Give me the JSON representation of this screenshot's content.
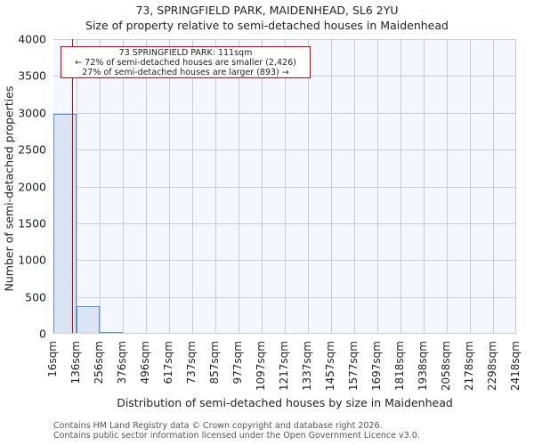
{
  "header": {
    "title": "73, SPRINGFIELD PARK, MAIDENHEAD, SL6 2YU",
    "subtitle": "Size of property relative to semi-detached houses in Maidenhead"
  },
  "annotation": {
    "line1": "73 SPRINGFIELD PARK: 111sqm",
    "line2": "← 72% of semi-detached houses are smaller (2,426)",
    "line3": "27% of semi-detached houses are larger (893) →",
    "color": "#cc0000"
  },
  "axes": {
    "ylabel": "Number of semi-detached properties",
    "xlabel": "Distribution of semi-detached houses by size in Maidenhead",
    "yticks": [
      "0",
      "500",
      "1000",
      "1500",
      "2000",
      "2500",
      "3000",
      "3500",
      "4000"
    ],
    "xticks": [
      "16sqm",
      "136sqm",
      "256sqm",
      "376sqm",
      "496sqm",
      "617sqm",
      "737sqm",
      "857sqm",
      "977sqm",
      "1097sqm",
      "1217sqm",
      "1337sqm",
      "1457sqm",
      "1577sqm",
      "1697sqm",
      "1818sqm",
      "1938sqm",
      "2058sqm",
      "2178sqm",
      "2298sqm",
      "2418sqm"
    ]
  },
  "footer": {
    "line1": "Contains HM Land Registry data © Crown copyright and database right 2026.",
    "line2": "Contains public sector information licensed under the Open Government Licence v3.0."
  },
  "chart_data": {
    "type": "bar",
    "title": "73, SPRINGFIELD PARK, MAIDENHEAD, SL6 2YU",
    "subtitle": "Size of property relative to semi-detached houses in Maidenhead",
    "xlabel": "Distribution of semi-detached houses by size in Maidenhead",
    "ylabel": "Number of semi-detached properties",
    "categories": [
      "16sqm",
      "136sqm",
      "256sqm",
      "376sqm",
      "496sqm",
      "617sqm",
      "737sqm",
      "857sqm",
      "977sqm",
      "1097sqm",
      "1217sqm",
      "1337sqm",
      "1457sqm",
      "1577sqm",
      "1697sqm",
      "1818sqm",
      "1938sqm",
      "2058sqm",
      "2178sqm",
      "2298sqm"
    ],
    "values": [
      2970,
      360,
      10,
      0,
      0,
      0,
      0,
      0,
      0,
      0,
      0,
      0,
      0,
      0,
      0,
      0,
      0,
      0,
      0,
      0
    ],
    "ylim": [
      0,
      4000
    ],
    "grid": true,
    "marker": {
      "x": 111,
      "label": "73 SPRINGFIELD PARK: 111sqm"
    },
    "bar_color": "#dae4f3",
    "bar_edge_color": "#5b8fd0"
  }
}
